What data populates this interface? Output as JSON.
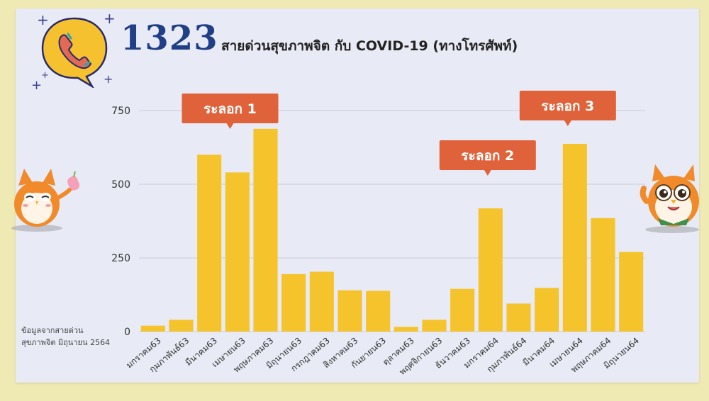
{
  "header": {
    "hotline": "1323",
    "headline": "สายด่วนสุขภาพจิต กับ COVID-19 (ทางโทรศัพท์)"
  },
  "source_note": {
    "line1": "ข้อมูลจากสายด่วน",
    "line2": "สุขภาพจิต มิถุนายน 2564"
  },
  "icons": [
    "phone-icon",
    "sparkle-icon",
    "owl-mascot-icon"
  ],
  "colors": {
    "bar": "#f5c32c",
    "callout": "#e0623a",
    "hotline": "#1f3f86",
    "phone_bubble": "#f6c12e",
    "background": "#efe9b4",
    "card": "#e8ebf5"
  },
  "chart_data": {
    "type": "bar",
    "title": "",
    "xlabel": "",
    "ylabel": "",
    "ylim": [
      0,
      750
    ],
    "yticks": [
      0,
      250,
      500,
      750
    ],
    "grid": true,
    "categories": [
      "มกราคม63",
      "กุมภาพันธ์63",
      "มีนาคม63",
      "เมษายน63",
      "พฤษภาคม63",
      "มิถุนายน63",
      "กรกฎาคม63",
      "สิงหาคม63",
      "กันยายน63",
      "ตุลาคม63",
      "พฤศจิกายน63",
      "ธันวาคม63",
      "มกราคม64",
      "กุมภาพันธ์64",
      "มีนาคม64",
      "เมษายน64",
      "พฤษภาคม64",
      "มิถุนายน64"
    ],
    "values": [
      20,
      40,
      600,
      540,
      688,
      195,
      203,
      140,
      138,
      16,
      40,
      145,
      418,
      95,
      148,
      637,
      385,
      270
    ],
    "annotations": [
      {
        "text": "ระลอก 1",
        "category_index": 4
      },
      {
        "text": "ระลอก 2",
        "category_index": 12
      },
      {
        "text": "ระลอก 3",
        "category_index": 15
      }
    ]
  }
}
